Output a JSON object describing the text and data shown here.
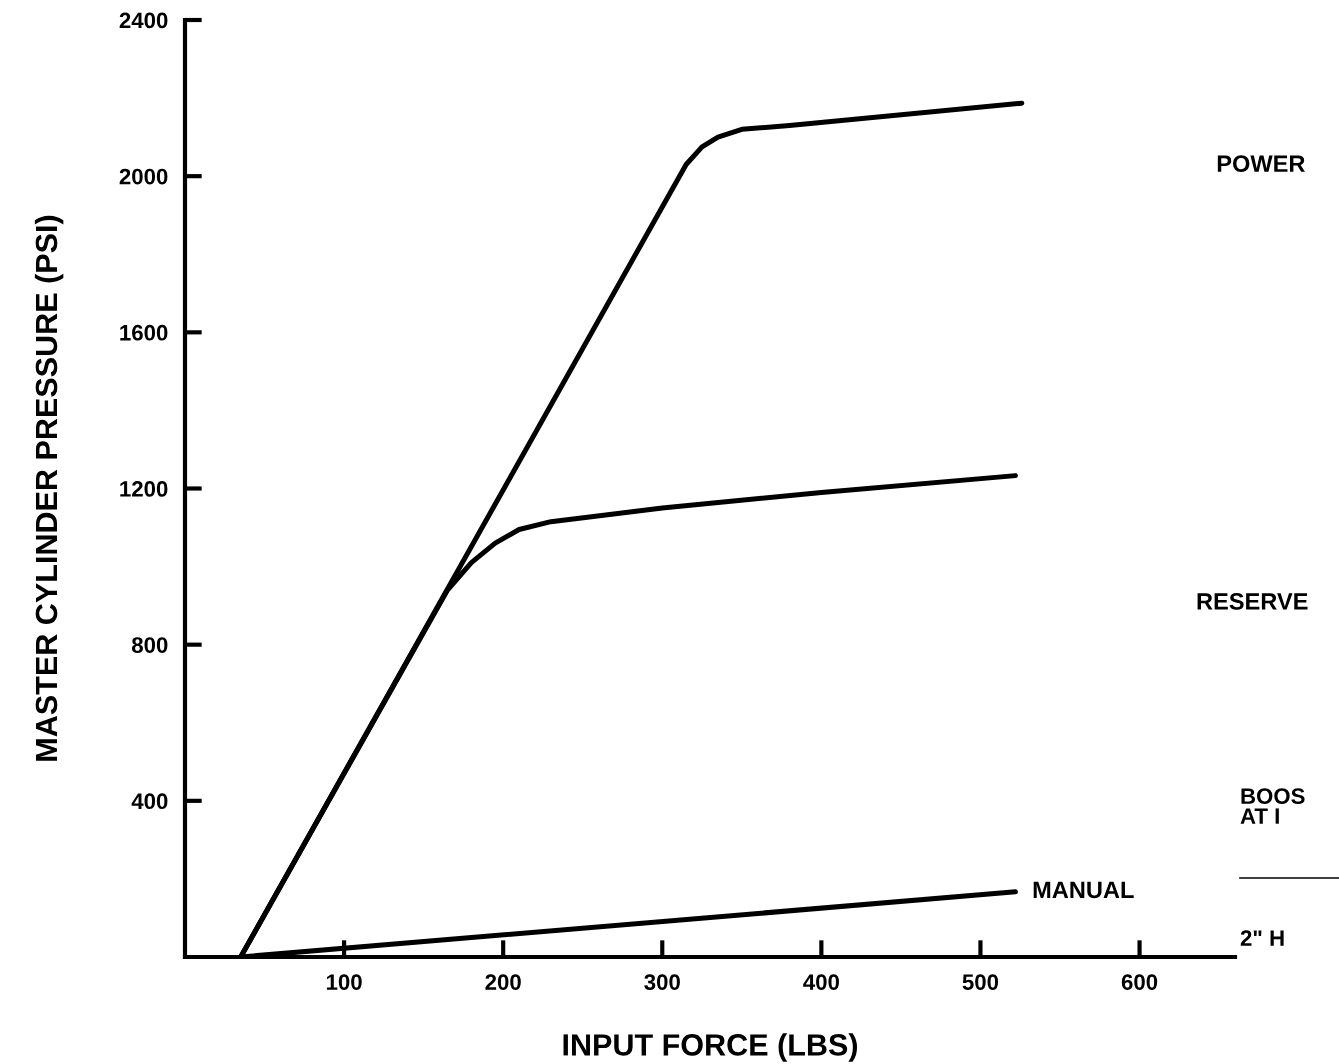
{
  "chart_data": {
    "type": "line",
    "xlabel": "INPUT FORCE (LBS)",
    "ylabel": "MASTER CYLINDER PRESSURE (PSI)",
    "xlim": [
      0,
      660
    ],
    "ylim": [
      0,
      2400
    ],
    "xticks": [
      100,
      200,
      300,
      400,
      500,
      600
    ],
    "yticks": [
      400,
      800,
      1200,
      1600,
      2000,
      2400
    ],
    "grid": false,
    "legend": false,
    "line_style": "solid",
    "marker": "none",
    "series": [
      {
        "name": "POWER",
        "color": "#000000",
        "x": [
          35,
          315,
          325,
          335,
          350,
          380,
          526
        ],
        "values": [
          0,
          2030,
          2075,
          2100,
          2120,
          2130,
          2187
        ]
      },
      {
        "name": "RESERVE",
        "color": "#000000",
        "x": [
          35,
          165,
          180,
          195,
          210,
          230,
          300,
          400,
          522
        ],
        "values": [
          0,
          940,
          1010,
          1060,
          1095,
          1115,
          1150,
          1190,
          1233
        ]
      },
      {
        "name": "MANUAL",
        "color": "#000000",
        "x": [
          35,
          522
        ],
        "values": [
          0,
          167
        ]
      }
    ],
    "annotations": [
      "BOOS\nAT I",
      "2\" H"
    ]
  }
}
